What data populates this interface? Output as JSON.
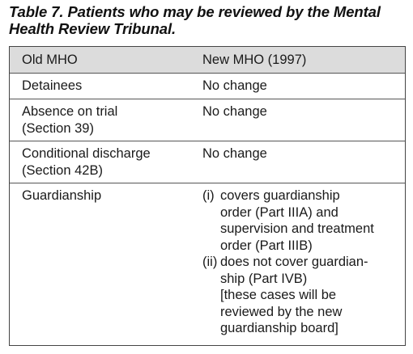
{
  "caption": {
    "line1": "Table 7. Patients who may be reviewed by the Mental",
    "line2": "Health Review Tribunal."
  },
  "table": {
    "headers": [
      "Old MHO",
      "New MHO (1997)"
    ],
    "rows": [
      {
        "old": [
          "Detainees"
        ],
        "new": "No change"
      },
      {
        "old": [
          "Absence on trial",
          "(Section 39)"
        ],
        "new": "No change"
      },
      {
        "old": [
          "Conditional discharge",
          "(Section 42B)"
        ],
        "new": "No change"
      },
      {
        "old": [
          "Guardianship"
        ],
        "items": [
          {
            "num": "(i)",
            "lines": [
              "covers guardianship",
              "order (Part IIIA) and",
              "supervision and treatment",
              "order (Part IIIB)"
            ]
          },
          {
            "num": "(ii)",
            "lines": [
              "does not cover guardian-",
              "ship  (Part IVB)",
              "[these cases will be",
              "reviewed by the new",
              "guardianship board]"
            ]
          }
        ]
      }
    ]
  }
}
